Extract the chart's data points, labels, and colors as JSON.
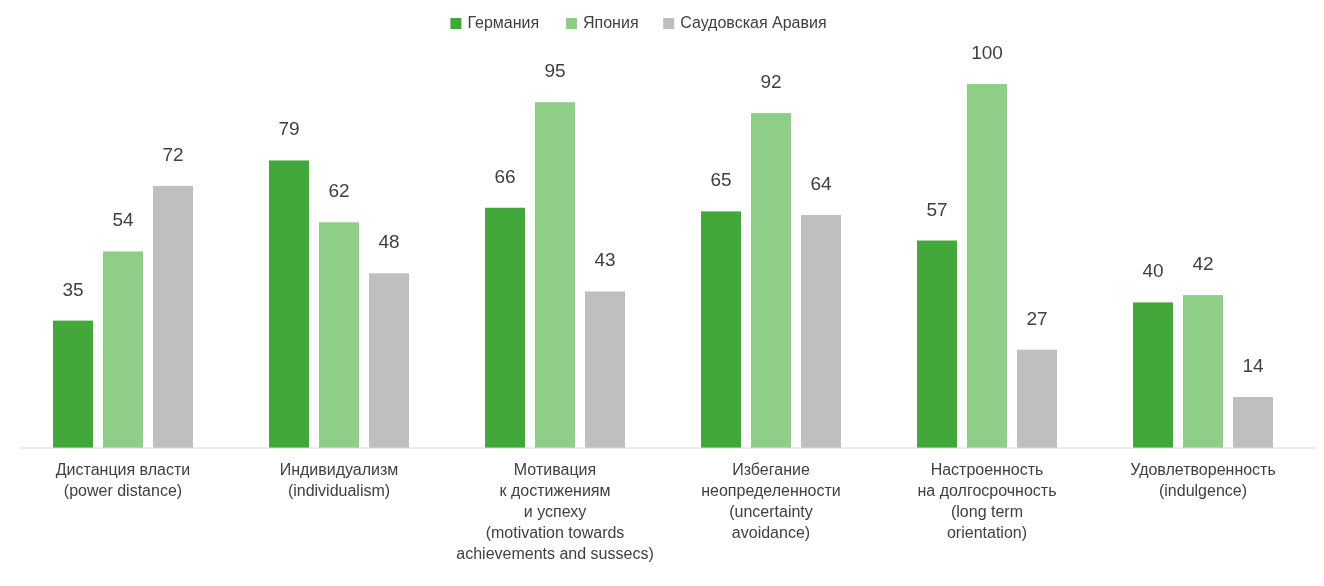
{
  "chart_data": {
    "type": "bar",
    "categories": [
      "Дистанция власти\n(power distance)",
      "Индивидуализм\n(individualism)",
      "Мотивация\nк достижениям\nи успеху\n(motivation towards\nachievements and sussecs)",
      "Избегание\nнеопределенности\n(uncertainty\navoidance)",
      "Настроенность\nна долгосрочность\n(long term\norientation)",
      "Удовлетворенность\n(indulgence)"
    ],
    "series": [
      {
        "name": "Германия",
        "color": "#43a83a",
        "values": [
          35,
          79,
          66,
          65,
          57,
          40
        ]
      },
      {
        "name": "Япония",
        "color": "#8fce86",
        "values": [
          54,
          62,
          95,
          92,
          100,
          42
        ]
      },
      {
        "name": "Саудовская Аравия",
        "color": "#bfbfbf",
        "values": [
          72,
          48,
          43,
          64,
          27,
          14
        ]
      }
    ],
    "data_labels": true,
    "legend": "top"
  }
}
